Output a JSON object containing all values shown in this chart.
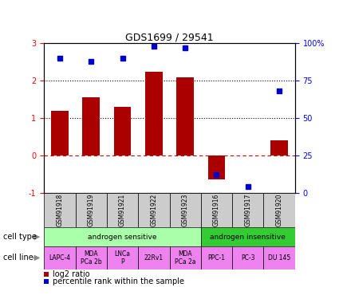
{
  "title": "GDS1699 / 29541",
  "samples": [
    "GSM91918",
    "GSM91919",
    "GSM91921",
    "GSM91922",
    "GSM91923",
    "GSM91916",
    "GSM91917",
    "GSM91920"
  ],
  "log2_ratio": [
    1.2,
    1.55,
    1.3,
    2.25,
    2.1,
    -0.65,
    0.0,
    0.4
  ],
  "percentile_rank_pct": [
    90,
    88,
    90,
    98,
    97,
    12,
    4,
    68
  ],
  "bar_color": "#AA0000",
  "dot_color": "#0000CC",
  "cell_types": [
    {
      "label": "androgen sensitive",
      "start": 0,
      "end": 5,
      "color": "#AAFFAA"
    },
    {
      "label": "androgen insensitive",
      "start": 5,
      "end": 8,
      "color": "#33CC33"
    }
  ],
  "cell_lines": [
    {
      "label": "LAPC-4",
      "start": 0,
      "end": 1
    },
    {
      "label": "MDA\nPCa 2b",
      "start": 1,
      "end": 2
    },
    {
      "label": "LNCa\nP",
      "start": 2,
      "end": 3
    },
    {
      "label": "22Rv1",
      "start": 3,
      "end": 4
    },
    {
      "label": "MDA\nPCa 2a",
      "start": 4,
      "end": 5
    },
    {
      "label": "PPC-1",
      "start": 5,
      "end": 6
    },
    {
      "label": "PC-3",
      "start": 6,
      "end": 7
    },
    {
      "label": "DU 145",
      "start": 7,
      "end": 8
    }
  ],
  "cell_line_color": "#EE82EE",
  "sample_box_color": "#CCCCCC",
  "ylim_left": [
    -1,
    3
  ],
  "ylim_right": [
    0,
    100
  ],
  "yticks_left": [
    -1,
    0,
    1,
    2,
    3
  ],
  "yticks_right": [
    0,
    25,
    50,
    75,
    100
  ],
  "yticklabels_right": [
    "0",
    "25",
    "50",
    "75",
    "100%"
  ]
}
